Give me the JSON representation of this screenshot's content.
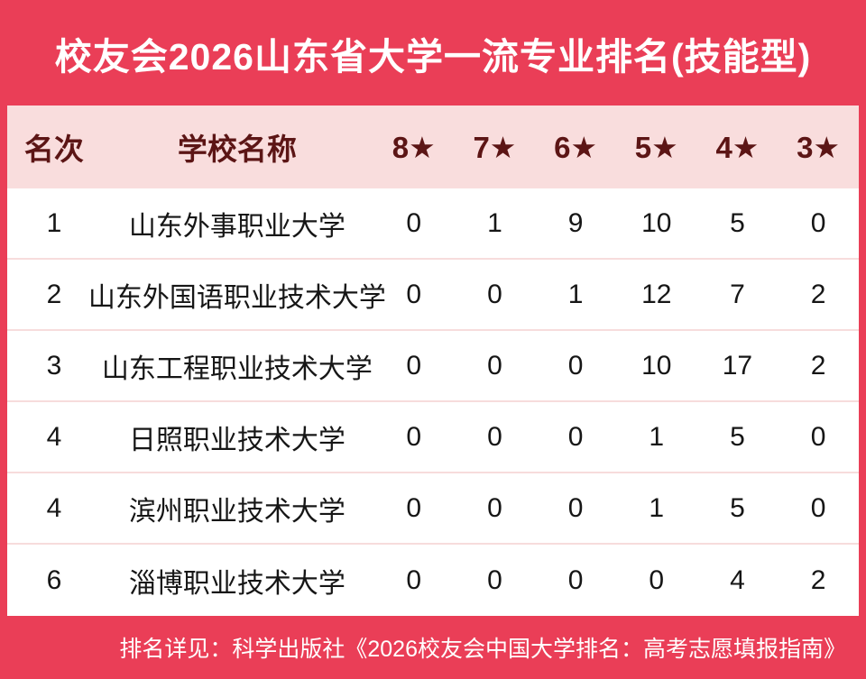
{
  "title": "校友会2026山东省大学一流专业排名(技能型)",
  "table": {
    "columns": [
      "名次",
      "学校名称",
      "8★",
      "7★",
      "6★",
      "5★",
      "4★",
      "3★"
    ],
    "rows": [
      {
        "rank": "1",
        "name": "山东外事职业大学",
        "values": [
          "0",
          "1",
          "9",
          "10",
          "5",
          "0"
        ]
      },
      {
        "rank": "2",
        "name": "山东外国语职业技术大学",
        "values": [
          "0",
          "0",
          "1",
          "12",
          "7",
          "2"
        ]
      },
      {
        "rank": "3",
        "name": "山东工程职业技术大学",
        "values": [
          "0",
          "0",
          "0",
          "10",
          "17",
          "2"
        ]
      },
      {
        "rank": "4",
        "name": "日照职业技术大学",
        "values": [
          "0",
          "0",
          "0",
          "1",
          "5",
          "0"
        ]
      },
      {
        "rank": "4",
        "name": "滨州职业技术大学",
        "values": [
          "0",
          "0",
          "0",
          "1",
          "5",
          "0"
        ]
      },
      {
        "rank": "6",
        "name": "淄博职业技术大学",
        "values": [
          "0",
          "0",
          "0",
          "0",
          "4",
          "2"
        ]
      }
    ]
  },
  "footer": {
    "note": "排名详见：科学出版社《2026校友会中国大学排名：高考志愿填报指南》"
  },
  "colors": {
    "background_red": "#ea3e57",
    "header_pink": "#f9dddd",
    "header_text_maroon": "#5c1515",
    "row_divider_pink": "#f7dcdc",
    "body_text": "#161616",
    "title_text": "#ffffff"
  },
  "chart_data": {
    "type": "table",
    "title": "校友会2026山东省大学一流专业排名(技能型)",
    "columns": [
      "名次",
      "学校名称",
      "8★",
      "7★",
      "6★",
      "5★",
      "4★",
      "3★"
    ],
    "rows": [
      [
        "1",
        "山东外事职业大学",
        0,
        1,
        9,
        10,
        5,
        0
      ],
      [
        "2",
        "山东外国语职业技术大学",
        0,
        0,
        1,
        12,
        7,
        2
      ],
      [
        "3",
        "山东工程职业技术大学",
        0,
        0,
        0,
        10,
        17,
        2
      ],
      [
        "4",
        "日照职业技术大学",
        0,
        0,
        0,
        1,
        5,
        0
      ],
      [
        "4",
        "滨州职业技术大学",
        0,
        0,
        0,
        1,
        5,
        0
      ],
      [
        "6",
        "淄博职业技术大学",
        0,
        0,
        0,
        0,
        4,
        2
      ]
    ],
    "source_note": "排名详见：科学出版社《2026校友会中国大学排名：高考志愿填报指南》"
  }
}
